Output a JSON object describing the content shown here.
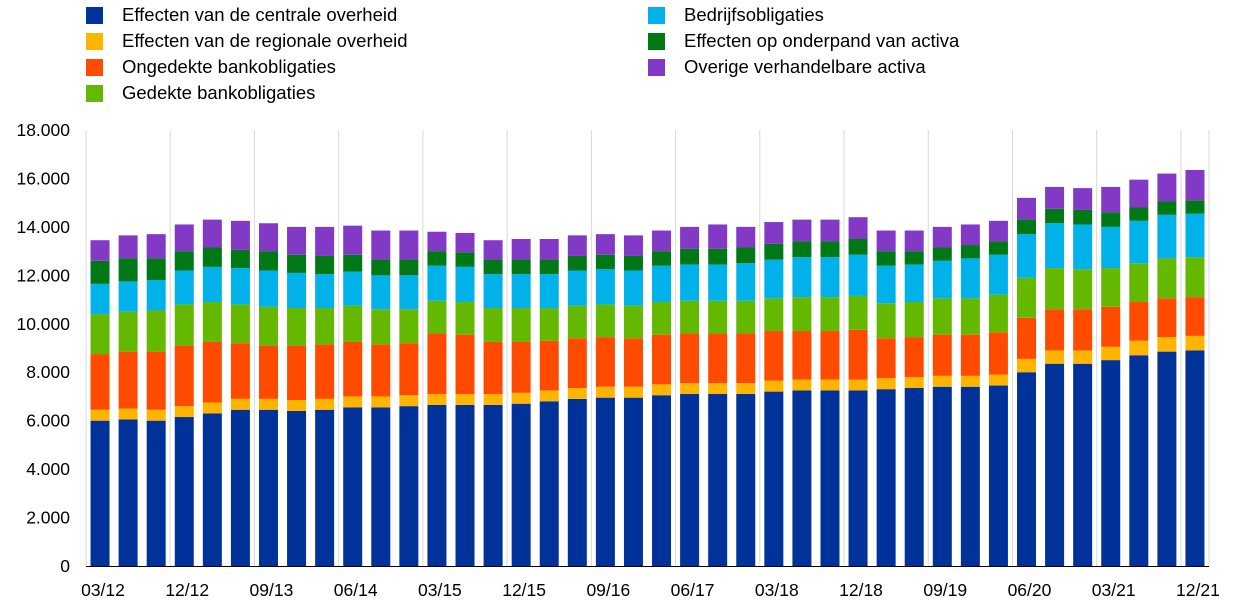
{
  "chart_data": {
    "type": "bar",
    "stacked": true,
    "title": "",
    "xlabel": "",
    "ylabel": "",
    "ylim": [
      0,
      18000
    ],
    "y_ticks": [
      "0",
      "2.000",
      "4.000",
      "6.000",
      "8.000",
      "10.000",
      "12.000",
      "14.000",
      "16.000",
      "18.000"
    ],
    "x_tick_labels": [
      "03/12",
      "12/12",
      "09/13",
      "06/14",
      "03/15",
      "12/15",
      "09/16",
      "06/17",
      "03/18",
      "12/18",
      "09/19",
      "06/20",
      "03/21",
      "12/21"
    ],
    "grid": "vertical",
    "legend_position": "top",
    "categories": [
      "03/12",
      "06/12",
      "09/12",
      "12/12",
      "03/13",
      "06/13",
      "09/13",
      "12/13",
      "03/14",
      "06/14",
      "09/14",
      "12/14",
      "03/15",
      "06/15",
      "09/15",
      "12/15",
      "03/16",
      "06/16",
      "09/16",
      "12/16",
      "03/17",
      "06/17",
      "09/17",
      "12/17",
      "03/18",
      "06/18",
      "09/18",
      "12/18",
      "03/19",
      "06/19",
      "09/19",
      "12/19",
      "03/20",
      "06/20",
      "09/20",
      "12/20",
      "03/21",
      "06/21",
      "09/21",
      "12/21"
    ],
    "series": [
      {
        "name": "Effecten van de centrale overheid",
        "color": "#003299",
        "values": [
          6000,
          6050,
          6000,
          6150,
          6300,
          6450,
          6450,
          6400,
          6450,
          6550,
          6550,
          6600,
          6650,
          6650,
          6650,
          6700,
          6800,
          6900,
          6950,
          6950,
          7050,
          7100,
          7100,
          7100,
          7200,
          7250,
          7250,
          7250,
          7300,
          7350,
          7400,
          7400,
          7450,
          8000,
          8350,
          8350,
          8500,
          8700,
          8850,
          8900
        ]
      },
      {
        "name": "Effecten van de regionale overheid",
        "color": "#FFB400",
        "values": [
          450,
          450,
          450,
          450,
          450,
          450,
          450,
          450,
          450,
          450,
          450,
          450,
          450,
          450,
          450,
          450,
          450,
          450,
          450,
          450,
          450,
          450,
          450,
          450,
          450,
          450,
          450,
          450,
          450,
          450,
          450,
          450,
          450,
          550,
          550,
          550,
          550,
          600,
          600,
          600
        ]
      },
      {
        "name": "Ongedekte bankobligaties",
        "color": "#FF4B00",
        "values": [
          2300,
          2350,
          2400,
          2500,
          2500,
          2300,
          2200,
          2250,
          2250,
          2250,
          2150,
          2150,
          2500,
          2450,
          2150,
          2100,
          2050,
          2050,
          2050,
          2000,
          2050,
          2050,
          2050,
          2050,
          2050,
          2000,
          2000,
          2050,
          1650,
          1650,
          1700,
          1700,
          1750,
          1700,
          1700,
          1700,
          1650,
          1600,
          1600,
          1600
        ]
      },
      {
        "name": "Gedekte bankobligaties",
        "color": "#65B800",
        "values": [
          1650,
          1650,
          1700,
          1700,
          1650,
          1600,
          1600,
          1550,
          1500,
          1500,
          1450,
          1400,
          1350,
          1350,
          1400,
          1400,
          1350,
          1350,
          1350,
          1350,
          1350,
          1350,
          1350,
          1350,
          1350,
          1400,
          1400,
          1400,
          1450,
          1450,
          1500,
          1500,
          1550,
          1650,
          1700,
          1650,
          1600,
          1600,
          1650,
          1650
        ]
      },
      {
        "name": "Bedrijfsobligaties",
        "color": "#00B1EA",
        "values": [
          1250,
          1250,
          1250,
          1400,
          1450,
          1500,
          1500,
          1450,
          1400,
          1400,
          1400,
          1400,
          1450,
          1450,
          1400,
          1400,
          1400,
          1450,
          1450,
          1450,
          1500,
          1500,
          1500,
          1550,
          1600,
          1650,
          1650,
          1700,
          1550,
          1550,
          1550,
          1650,
          1650,
          1800,
          1850,
          1850,
          1700,
          1750,
          1800,
          1800
        ]
      },
      {
        "name": "Effecten op onderpand van activa",
        "color": "#007816",
        "values": [
          950,
          950,
          900,
          800,
          800,
          750,
          800,
          750,
          750,
          700,
          650,
          650,
          600,
          600,
          600,
          600,
          600,
          600,
          600,
          600,
          600,
          650,
          650,
          650,
          650,
          650,
          650,
          650,
          600,
          550,
          550,
          550,
          550,
          600,
          600,
          600,
          600,
          550,
          550,
          550
        ]
      },
      {
        "name": "Overige verhandelbare activa",
        "color": "#8139C6",
        "values": [
          850,
          950,
          1000,
          1100,
          1150,
          1200,
          1150,
          1150,
          1200,
          1200,
          1200,
          1200,
          800,
          800,
          800,
          850,
          850,
          850,
          850,
          850,
          850,
          900,
          1000,
          850,
          900,
          900,
          900,
          900,
          850,
          850,
          850,
          850,
          850,
          900,
          900,
          900,
          1050,
          1150,
          1150,
          1250
        ]
      }
    ]
  }
}
